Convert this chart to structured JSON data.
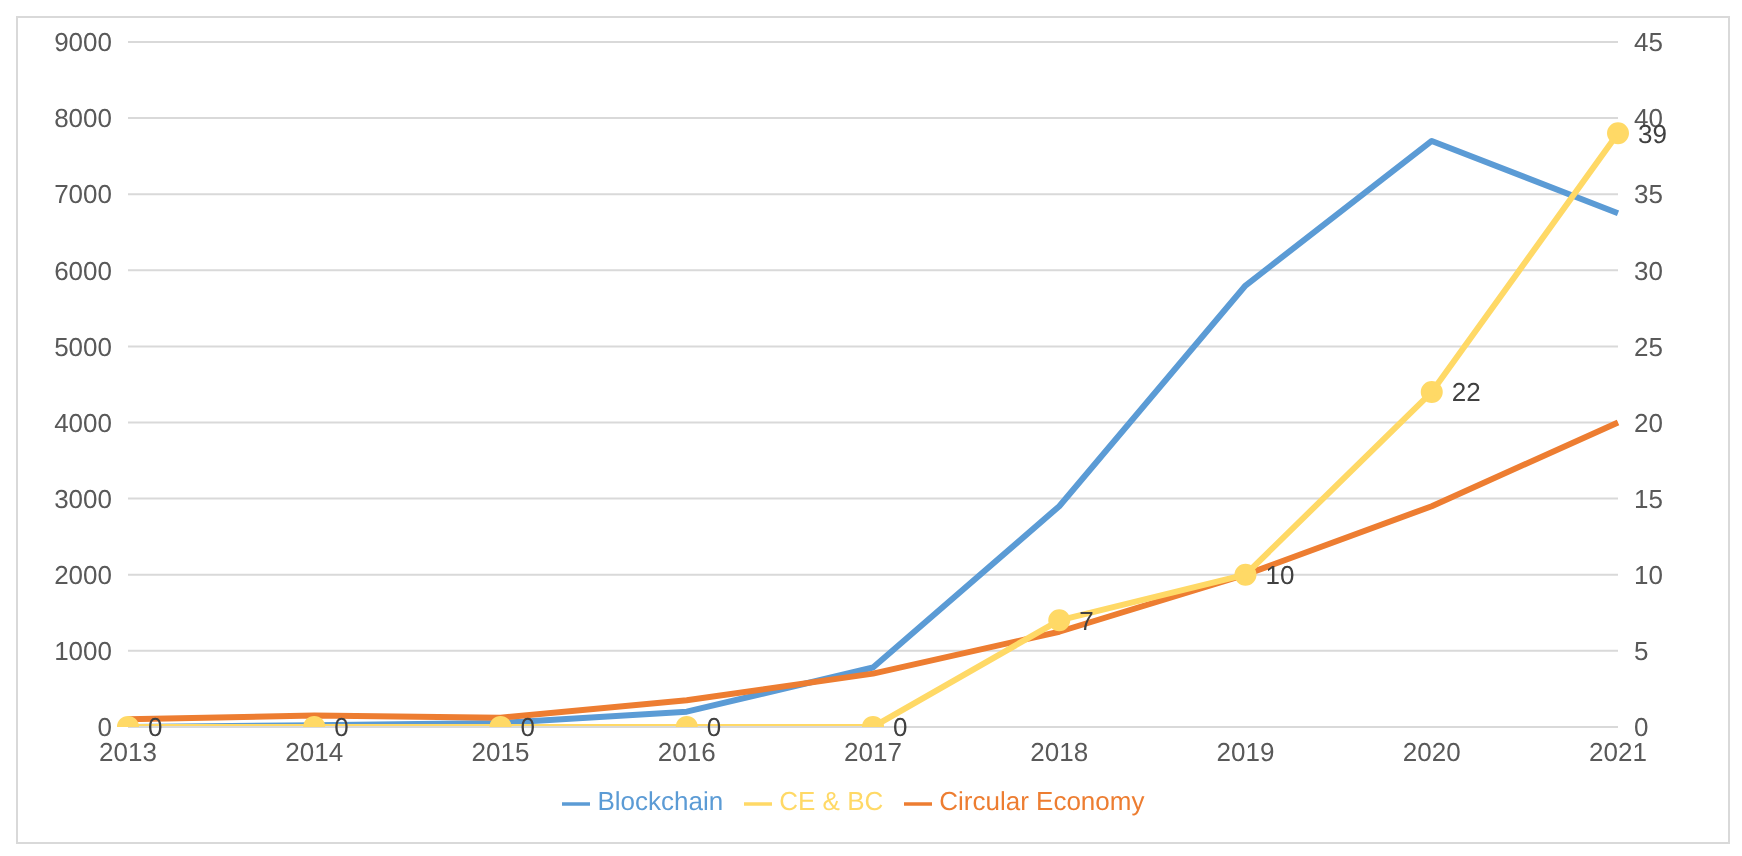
{
  "chart_data": {
    "type": "line",
    "categories": [
      "2013",
      "2014",
      "2015",
      "2016",
      "2017",
      "2018",
      "2019",
      "2020",
      "2021"
    ],
    "series": [
      {
        "name": "Blockchain",
        "color": "#5b9bd5",
        "values": [
          0,
          20,
          50,
          200,
          780,
          2900,
          5800,
          7700,
          6750
        ]
      },
      {
        "name": "Circular Economy",
        "color": "#ed7d31",
        "values": [
          100,
          150,
          120,
          350,
          700,
          1250,
          2000,
          2900,
          4000
        ]
      },
      {
        "name": "CE & BC",
        "color": "#ffd966",
        "axis": "y2",
        "marker": "circle",
        "data_labels": true,
        "values": [
          0,
          0,
          0,
          0,
          0,
          7,
          10,
          22,
          39
        ]
      }
    ],
    "ylim": [
      0,
      9000
    ],
    "yticks": [
      0,
      1000,
      2000,
      3000,
      4000,
      5000,
      6000,
      7000,
      8000,
      9000
    ],
    "y2lim": [
      0,
      45
    ],
    "y2ticks": [
      0,
      5,
      10,
      15,
      20,
      25,
      30,
      35,
      40,
      45
    ],
    "grid": "y",
    "legend": "bottom",
    "line_style": "solid"
  }
}
